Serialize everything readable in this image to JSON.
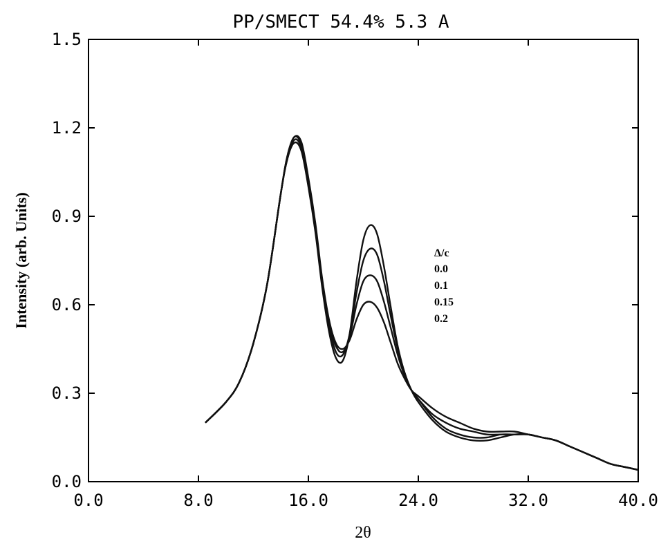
{
  "chart_data": {
    "type": "line",
    "title": "PP/SMECT 54.4% 5.3 A",
    "xlabel": "2θ",
    "ylabel": "Intensity (arb. Units)",
    "xlim": [
      0,
      40
    ],
    "ylim": [
      0,
      1.5
    ],
    "xticks": [
      "0.0",
      "8.0",
      "16.0",
      "24.0",
      "32.0",
      "40.0"
    ],
    "yticks": [
      "0.0",
      "0.3",
      "0.6",
      "0.9",
      "1.2",
      "1.5"
    ],
    "grid": false,
    "legend": {
      "title": "Δ/c",
      "entries": [
        "0.0",
        "0.1",
        "0.15",
        "0.2"
      ],
      "placement": "right-middle"
    },
    "series": [
      {
        "name": "0.0",
        "x": [
          8.5,
          10,
          11,
          12,
          13,
          14,
          14.5,
          15,
          15.5,
          16,
          16.5,
          17,
          17.5,
          18,
          18.5,
          19,
          19.5,
          20,
          20.5,
          21,
          21.5,
          22,
          22.5,
          23,
          23.5,
          24,
          25,
          26,
          27,
          28,
          29,
          30,
          31,
          32,
          33,
          34,
          35,
          36,
          37,
          38,
          39,
          40
        ],
        "y": [
          0.2,
          0.27,
          0.34,
          0.47,
          0.67,
          0.98,
          1.1,
          1.15,
          1.12,
          1.0,
          0.85,
          0.66,
          0.51,
          0.42,
          0.41,
          0.5,
          0.68,
          0.82,
          0.87,
          0.84,
          0.73,
          0.59,
          0.46,
          0.37,
          0.31,
          0.27,
          0.21,
          0.17,
          0.15,
          0.14,
          0.14,
          0.15,
          0.16,
          0.16,
          0.15,
          0.14,
          0.12,
          0.1,
          0.08,
          0.06,
          0.05,
          0.04
        ]
      },
      {
        "name": "0.1",
        "x": [
          8.5,
          10,
          11,
          12,
          13,
          14,
          14.5,
          15,
          15.5,
          16,
          16.5,
          17,
          17.5,
          18,
          18.5,
          19,
          19.5,
          20,
          20.5,
          21,
          21.5,
          22,
          22.5,
          23,
          23.5,
          24,
          25,
          26,
          27,
          28,
          29,
          30,
          31,
          32,
          33,
          34,
          35,
          36,
          37,
          38,
          39,
          40
        ],
        "y": [
          0.2,
          0.27,
          0.34,
          0.47,
          0.67,
          0.98,
          1.1,
          1.16,
          1.13,
          1.01,
          0.86,
          0.67,
          0.53,
          0.44,
          0.43,
          0.5,
          0.64,
          0.75,
          0.79,
          0.77,
          0.68,
          0.56,
          0.45,
          0.37,
          0.31,
          0.28,
          0.22,
          0.18,
          0.16,
          0.15,
          0.15,
          0.16,
          0.16,
          0.16,
          0.15,
          0.14,
          0.12,
          0.1,
          0.08,
          0.06,
          0.05,
          0.04
        ]
      },
      {
        "name": "0.15",
        "x": [
          8.5,
          10,
          11,
          12,
          13,
          14,
          14.5,
          15,
          15.5,
          16,
          16.5,
          17,
          17.5,
          18,
          18.5,
          19,
          19.5,
          20,
          20.5,
          21,
          21.5,
          22,
          22.5,
          23,
          23.5,
          24,
          25,
          26,
          27,
          28,
          29,
          30,
          31,
          32,
          33,
          34,
          35,
          36,
          37,
          38,
          39,
          40
        ],
        "y": [
          0.2,
          0.27,
          0.34,
          0.47,
          0.67,
          0.98,
          1.11,
          1.17,
          1.14,
          1.02,
          0.87,
          0.68,
          0.54,
          0.46,
          0.44,
          0.49,
          0.6,
          0.68,
          0.7,
          0.68,
          0.61,
          0.52,
          0.43,
          0.36,
          0.31,
          0.28,
          0.23,
          0.2,
          0.18,
          0.17,
          0.16,
          0.16,
          0.16,
          0.16,
          0.15,
          0.14,
          0.12,
          0.1,
          0.08,
          0.06,
          0.05,
          0.04
        ]
      },
      {
        "name": "0.2",
        "x": [
          8.5,
          10,
          11,
          12,
          13,
          14,
          14.5,
          15,
          15.5,
          16,
          16.5,
          17,
          17.5,
          18,
          18.5,
          19,
          19.5,
          20,
          20.5,
          21,
          21.5,
          22,
          22.5,
          23,
          23.5,
          24,
          25,
          26,
          27,
          28,
          29,
          30,
          31,
          32,
          33,
          34,
          35,
          36,
          37,
          38,
          39,
          40
        ],
        "y": [
          0.2,
          0.27,
          0.34,
          0.47,
          0.67,
          0.98,
          1.11,
          1.17,
          1.15,
          1.03,
          0.88,
          0.69,
          0.55,
          0.47,
          0.45,
          0.48,
          0.55,
          0.6,
          0.61,
          0.59,
          0.54,
          0.47,
          0.4,
          0.35,
          0.31,
          0.29,
          0.25,
          0.22,
          0.2,
          0.18,
          0.17,
          0.17,
          0.17,
          0.16,
          0.15,
          0.14,
          0.12,
          0.1,
          0.08,
          0.06,
          0.05,
          0.04
        ]
      }
    ]
  }
}
